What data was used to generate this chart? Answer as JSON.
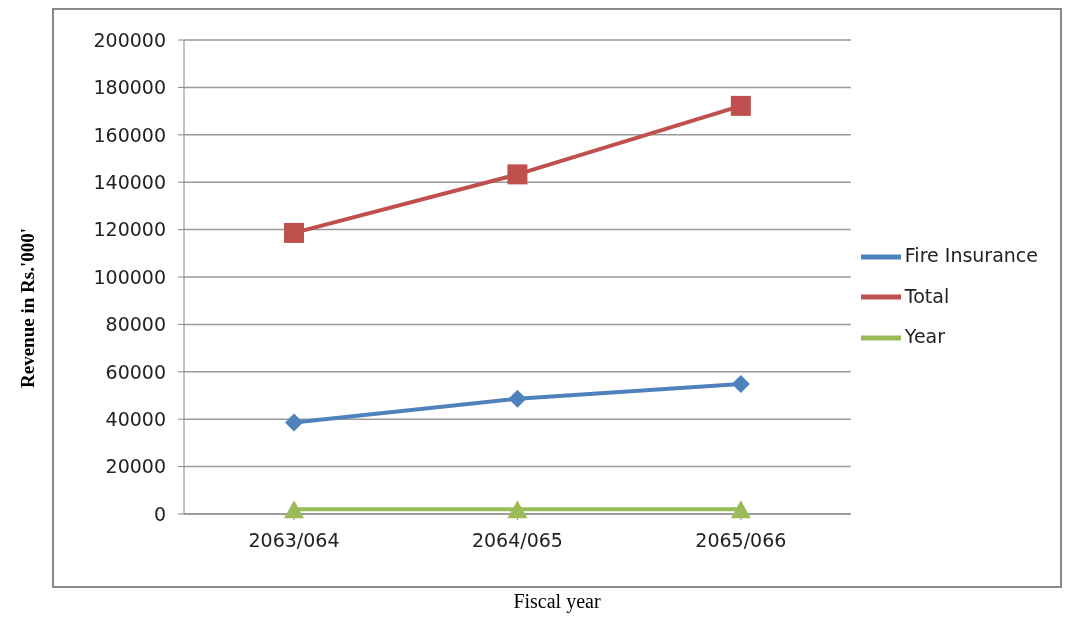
{
  "chart_data": {
    "type": "line",
    "xlabel": "Fiscal year",
    "ylabel": "Revenue in Rs.'000'",
    "categories": [
      "2063/064",
      "2064/065",
      "2065/066"
    ],
    "series": [
      {
        "name": "Fire Insurance",
        "color": "#4f81bd",
        "marker": "diamond",
        "values": [
          38600,
          48600,
          54900
        ]
      },
      {
        "name": "Total",
        "color": "#c0504d",
        "marker": "square",
        "values": [
          118600,
          143300,
          172200
        ]
      },
      {
        "name": "Year",
        "color": "#9bbb59",
        "marker": "triangle",
        "values": [
          2000,
          2000,
          2000
        ]
      }
    ],
    "ylim": [
      0,
      200000
    ],
    "yticks": [
      0,
      20000,
      40000,
      60000,
      80000,
      100000,
      120000,
      140000,
      160000,
      180000,
      200000
    ],
    "grid": "y",
    "legend": "right"
  }
}
